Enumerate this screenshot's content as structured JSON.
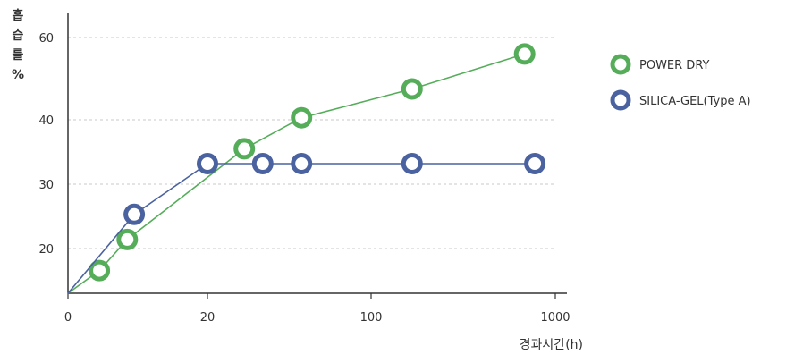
{
  "chart_data": {
    "type": "line",
    "ylabel": [
      "흡",
      "습",
      "률",
      "%"
    ],
    "xlabel": "경과시간(h)",
    "x_ticks": [
      "0",
      "20",
      "100",
      "1000"
    ],
    "y_ticks": [
      20,
      30,
      40,
      60
    ],
    "grid": "horizontal dashed",
    "legend_position": "right",
    "series": [
      {
        "name": "POWER DRY",
        "color": "#55ad5a",
        "points": [
          {
            "x": 0,
            "y": 13.5
          },
          {
            "x": 4.5,
            "y": 16.8
          },
          {
            "x": 8.5,
            "y": 21.4
          },
          {
            "x": 38,
            "y": 35.5
          },
          {
            "x": 66,
            "y": 40.5
          },
          {
            "x": 300,
            "y": 47.5
          },
          {
            "x": 850,
            "y": 56
          }
        ]
      },
      {
        "name": "SILICA-GEL(Type A)",
        "color": "#4a62a0",
        "points": [
          {
            "x": 0,
            "y": 13.5
          },
          {
            "x": 9.5,
            "y": 25.3
          },
          {
            "x": 20,
            "y": 33.2
          },
          {
            "x": 47,
            "y": 33.2
          },
          {
            "x": 66,
            "y": 33.2
          },
          {
            "x": 300,
            "y": 33.2
          },
          {
            "x": 900,
            "y": 33.2
          }
        ]
      }
    ]
  }
}
